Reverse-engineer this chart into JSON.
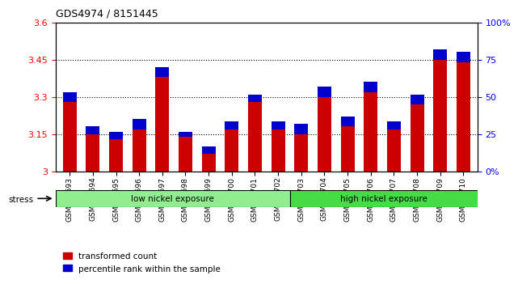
{
  "title": "GDS4974 / 8151445",
  "categories": [
    "GSM992693",
    "GSM992694",
    "GSM992695",
    "GSM992696",
    "GSM992697",
    "GSM992698",
    "GSM992699",
    "GSM992700",
    "GSM992701",
    "GSM992702",
    "GSM992703",
    "GSM992704",
    "GSM992705",
    "GSM992706",
    "GSM992707",
    "GSM992708",
    "GSM992709",
    "GSM992710"
  ],
  "red_values": [
    3.28,
    3.15,
    3.13,
    3.17,
    3.38,
    3.14,
    3.07,
    3.17,
    3.28,
    3.17,
    3.15,
    3.3,
    3.18,
    3.32,
    3.17,
    3.27,
    3.45,
    3.44
  ],
  "blue_values": [
    0.04,
    0.03,
    0.03,
    0.04,
    0.04,
    0.02,
    0.03,
    0.03,
    0.03,
    0.03,
    0.04,
    0.04,
    0.04,
    0.04,
    0.03,
    0.04,
    0.04,
    0.04
  ],
  "ylim_left": [
    3.0,
    3.6
  ],
  "ylim_right": [
    0,
    100
  ],
  "yticks_left": [
    3.0,
    3.15,
    3.3,
    3.45,
    3.6
  ],
  "yticks_right": [
    0,
    25,
    50,
    75,
    100
  ],
  "ytick_labels_left": [
    "3",
    "3.15",
    "3.3",
    "3.45",
    "3.6"
  ],
  "ytick_labels_right": [
    "0%",
    "25",
    "50",
    "75",
    "100%"
  ],
  "low_nickel_count": 10,
  "high_nickel_count": 8,
  "group_labels": [
    "low nickel exposure",
    "high nickel exposure"
  ],
  "group_bg_low": "#90ee90",
  "group_bg_high": "#44dd44",
  "legend_labels": [
    "transformed count",
    "percentile rank within the sample"
  ],
  "legend_colors": [
    "#cc0000",
    "#0000cc"
  ],
  "bar_color_red": "#cc0000",
  "bar_color_blue": "#0000cc",
  "bar_width": 0.6,
  "background_color": "#ffffff",
  "stress_label": "stress",
  "base_value": 3.0
}
